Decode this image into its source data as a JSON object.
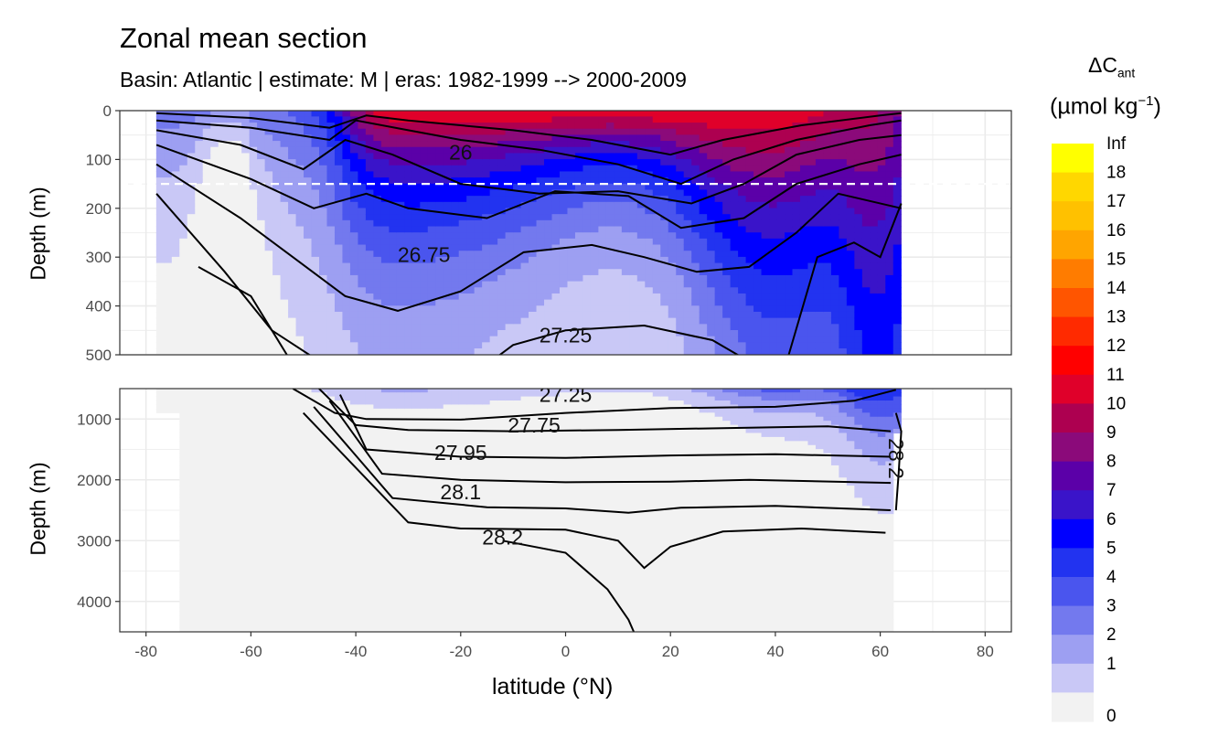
{
  "chart_data": {
    "type": "heatmap",
    "title": "Zonal mean section",
    "subtitle": "Basin: Atlantic | estimate: M  | eras: 1982-1999 --> 2000-2009",
    "xlabel": "latitude (°N)",
    "ylabel": "Depth (m)",
    "xlim": [
      -85,
      85
    ],
    "x_ticks": [
      "-80",
      "-60",
      "-40",
      "-20",
      "0",
      "20",
      "40",
      "60",
      "80"
    ],
    "panels": [
      {
        "name": "upper",
        "ylim": [
          0,
          500
        ],
        "reversed": true,
        "y_ticks": [
          "0",
          "100",
          "200",
          "300",
          "400",
          "500"
        ]
      },
      {
        "name": "lower",
        "ylim": [
          500,
          4500
        ],
        "reversed": true,
        "y_ticks": [
          "1000",
          "2000",
          "3000",
          "4000"
        ]
      }
    ],
    "reference_depth_line": 150,
    "legend": {
      "title": "ΔC",
      "title_sub": "ant",
      "unit": "(µmol kg",
      "unit_sup": "−1",
      "unit_end": ")",
      "levels": [
        "Inf",
        "18",
        "17",
        "16",
        "15",
        "14",
        "13",
        "12",
        "11",
        "10",
        "9",
        "8",
        "7",
        "6",
        "5",
        "4",
        "3",
        "2",
        "1",
        "0"
      ],
      "colors": [
        "#ffff00",
        "#ffd700",
        "#ffc100",
        "#ffa500",
        "#ff7c00",
        "#ff5500",
        "#ff2a00",
        "#ff0000",
        "#e0002a",
        "#ad0050",
        "#8b0a7a",
        "#5b00a8",
        "#3a14c9",
        "#0000ff",
        "#2233f0",
        "#4a55ee",
        "#7379ee",
        "#9d9ff2",
        "#c9c8f6",
        "#f2f2f2"
      ]
    },
    "density_contours": [
      {
        "label": "26",
        "lat": -20,
        "depth": 85
      },
      {
        "label": "26.75",
        "lat": -27,
        "depth": 295
      },
      {
        "label": "27.25",
        "lat": 0,
        "depth": 460
      },
      {
        "label": "27.25",
        "lat": 0,
        "depth": 600
      },
      {
        "label": "27.75",
        "lat": -6,
        "depth": 1100
      },
      {
        "label": "27.95",
        "lat": -20,
        "depth": 1550
      },
      {
        "label": "28.1",
        "lat": -20,
        "depth": 2200
      },
      {
        "label": "28.2",
        "lat": -12,
        "depth": 2940
      },
      {
        "label": "28.2",
        "lat": 63,
        "depth": 1650
      }
    ],
    "cant_field": {
      "lat_range": [
        -78,
        64
      ],
      "surface_max": 11,
      "pattern": "highest (9-11) at 0-150 m between 40°S and 50°N; 6-8 down to ~450 m; decreasing to 0-2 below ~1500 m; deep penetration (>1000 m) north of 50°N"
    }
  }
}
